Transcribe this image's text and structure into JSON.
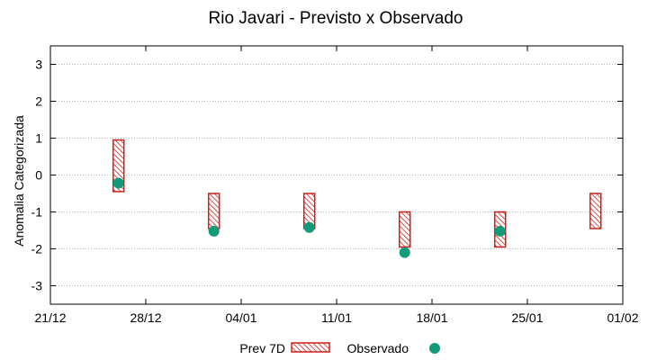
{
  "chart_data": {
    "type": "range-bar-with-points",
    "title": "Rio Javari - Previsto x Observado",
    "xlabel": "",
    "ylabel": "Anomalia Categorizada",
    "ylim": [
      -3.5,
      3.5
    ],
    "xlim": [
      0,
      42
    ],
    "y_ticks": [
      3,
      2,
      1,
      0,
      -1,
      -2,
      -3
    ],
    "y_tick_labels": [
      "3",
      "2",
      "1",
      "0",
      "-1",
      "-2",
      "-3"
    ],
    "x_ticks": [
      0,
      7,
      14,
      21,
      28,
      35,
      42
    ],
    "x_tick_labels": [
      "21/12",
      "28/12",
      "04/01",
      "11/01",
      "18/01",
      "25/01",
      "01/02"
    ],
    "grid": true,
    "legend_position": "bottom-center",
    "series": [
      {
        "name": "Prev 7D",
        "kind": "range",
        "color": "#cc1f1a",
        "points": [
          {
            "x": 5,
            "low": -0.45,
            "high": 0.95
          },
          {
            "x": 12,
            "low": -1.45,
            "high": -0.5
          },
          {
            "x": 19,
            "low": -1.45,
            "high": -0.5
          },
          {
            "x": 26,
            "low": -1.95,
            "high": -1.0
          },
          {
            "x": 33,
            "low": -1.95,
            "high": -1.0
          },
          {
            "x": 40,
            "low": -1.45,
            "high": -0.5
          }
        ]
      },
      {
        "name": "Observado",
        "kind": "point",
        "color": "#149a78",
        "points": [
          {
            "x": 5,
            "y": -0.22
          },
          {
            "x": 12,
            "y": -1.52
          },
          {
            "x": 19,
            "y": -1.42
          },
          {
            "x": 26,
            "y": -2.1
          },
          {
            "x": 33,
            "y": -1.52
          }
        ]
      }
    ]
  }
}
